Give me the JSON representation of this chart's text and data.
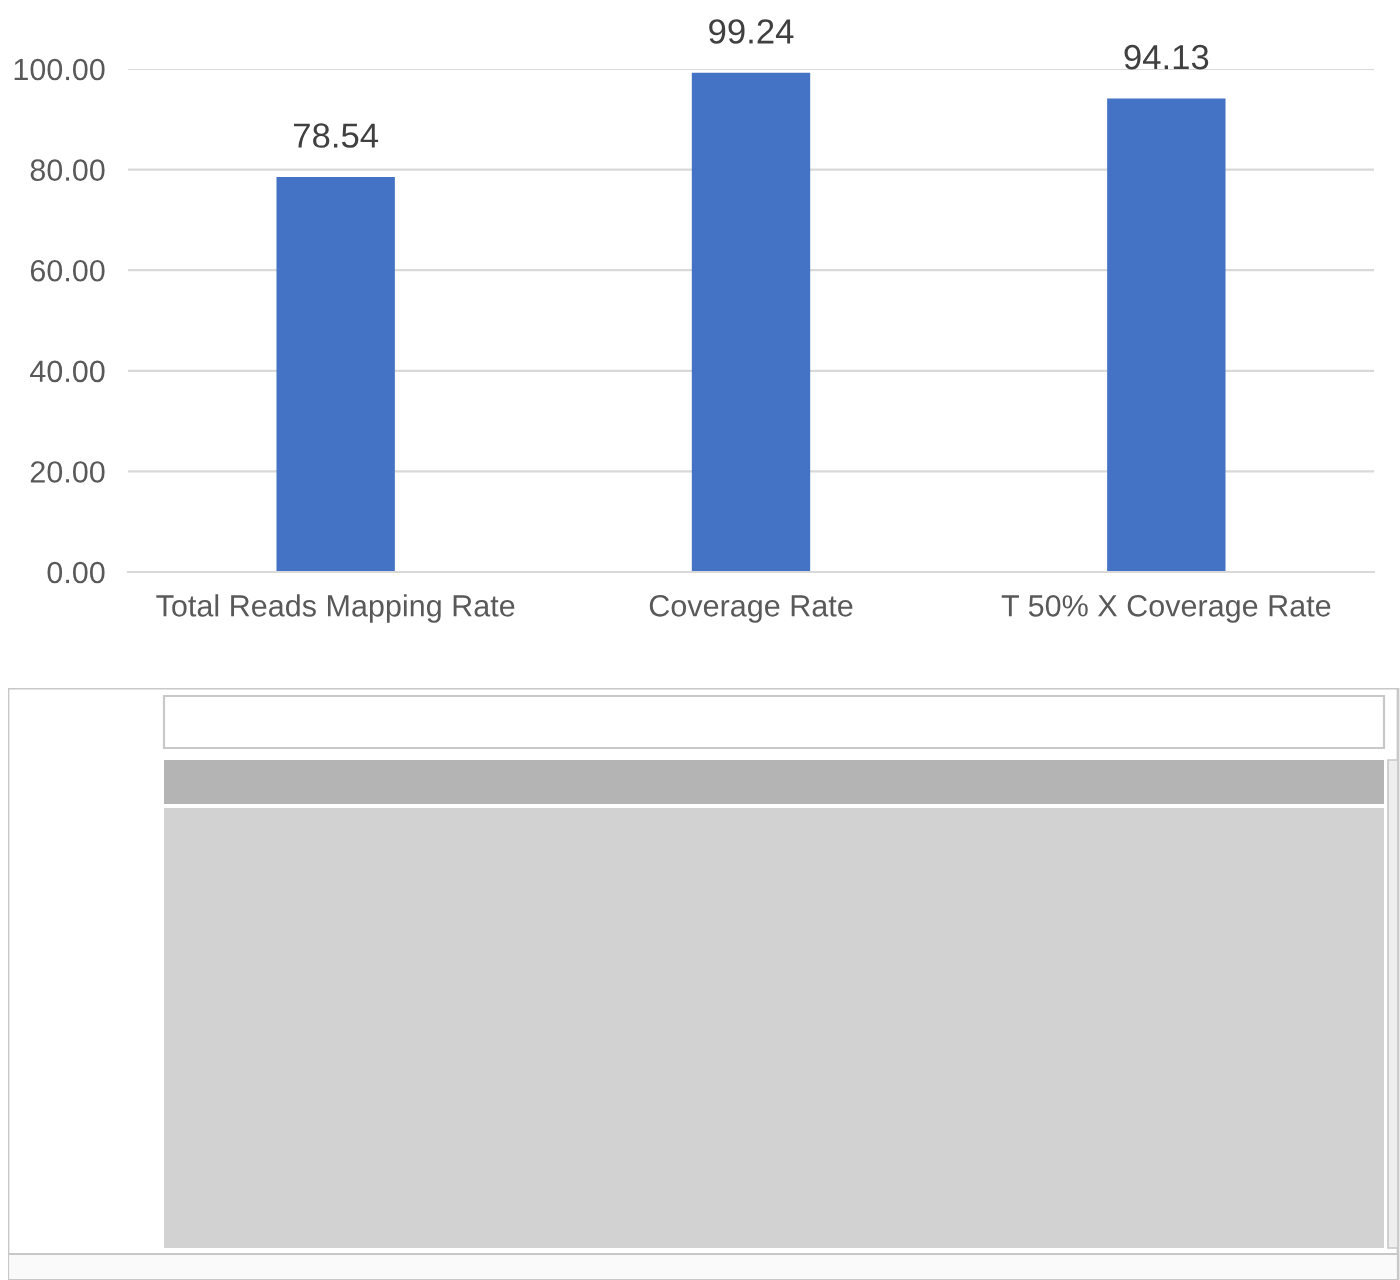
{
  "chart_data": {
    "type": "bar",
    "categories": [
      "Total Reads Mapping Rate",
      "Coverage Rate",
      "T 50% X Coverage Rate"
    ],
    "values": [
      78.54,
      99.24,
      94.13
    ],
    "color": "#4472c4",
    "ylim": [
      0,
      100
    ],
    "yticks": [
      {
        "value": 0,
        "label": "0.00"
      },
      {
        "value": 20,
        "label": "20.00"
      },
      {
        "value": 40,
        "label": "40.00"
      },
      {
        "value": 60,
        "label": "60.00"
      },
      {
        "value": 80,
        "label": "80.00"
      },
      {
        "value": 100,
        "label": "100.00"
      }
    ],
    "grid": "y",
    "data_labels": true
  }
}
